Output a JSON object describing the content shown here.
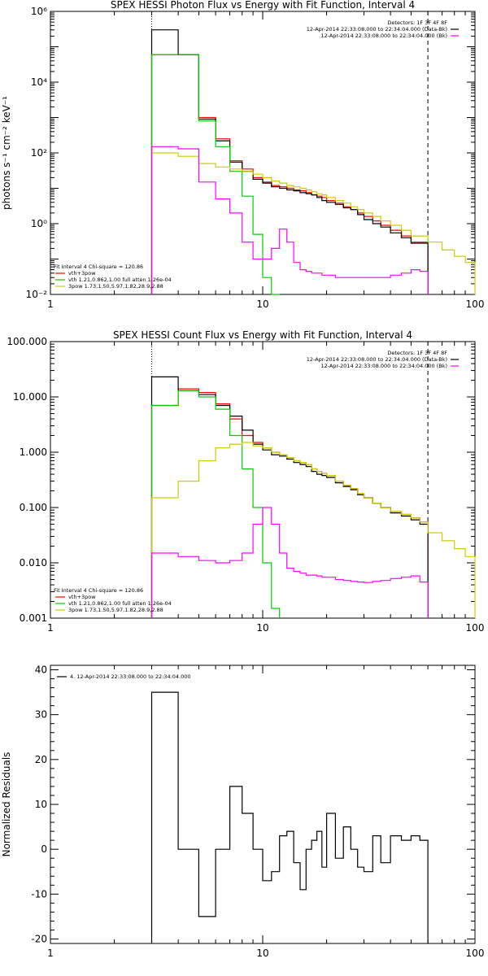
{
  "chart_data": [
    {
      "type": "line",
      "title": "SPEX HESSI Photon Flux vs Energy with Fit Function, Interval 4",
      "ylabel": "photons s⁻¹ cm⁻² keV⁻¹",
      "xlabel": "",
      "xscale": "log",
      "yscale": "log",
      "xlim": [
        1,
        100
      ],
      "ylim": [
        0.01,
        1000000
      ],
      "x_ticks": [
        {
          "v": 1,
          "label": "1"
        },
        {
          "v": 10,
          "label": "10"
        },
        {
          "v": 100,
          "label": "100"
        }
      ],
      "y_ticks": [
        {
          "v": 0.01,
          "label": "10⁻²"
        },
        {
          "v": 1,
          "label": "10⁰"
        },
        {
          "v": 100,
          "label": "10²"
        },
        {
          "v": 10000,
          "label": "10⁴"
        },
        {
          "v": 1000000,
          "label": "10⁶"
        }
      ],
      "vlines": [
        {
          "x": 3,
          "style": "dotted"
        },
        {
          "x": 60,
          "style": "dashed"
        }
      ],
      "legend_top": [
        {
          "text": "Detectors: 1F 3F 4F 8F",
          "color": "#000000"
        },
        {
          "text": "12-Apr-2014 22:33:08.000 to 22:34:04.000 (Data-Bk)",
          "color": "#000000"
        },
        {
          "text": "12-Apr-2014 22:33:08.000 to 22:34:04.000 (Bk)",
          "color": "#ff00ff"
        }
      ],
      "legend_bottom": [
        {
          "text": "Fit Interval 4   Chi-square = 120.86",
          "color": "#000000"
        },
        {
          "text": "vth+3pow",
          "color": "#ff0000"
        },
        {
          "text": "vth 1.21,0.862,1.00  full atten 1.26e-04",
          "color": "#00cc00"
        },
        {
          "text": "3pow 1.73,1.50,5.97,1.82,28.9,2.88",
          "color": "#cccc00"
        }
      ],
      "series": [
        {
          "color": "#ff0000",
          "edges": [
            3,
            4,
            5,
            6,
            7,
            8,
            9,
            10,
            11,
            12,
            13,
            14,
            15,
            16,
            17,
            18,
            19,
            20,
            22,
            24,
            26,
            28,
            30,
            33,
            36,
            40,
            45,
            50,
            60
          ],
          "values": [
            60000,
            60000,
            1000,
            250,
            60,
            35,
            20,
            15,
            12,
            11,
            10,
            9,
            8.5,
            7.5,
            6.5,
            6,
            5.5,
            4.5,
            3.8,
            3,
            2.5,
            2,
            1.6,
            1.2,
            0.9,
            0.65,
            0.45,
            0.3
          ]
        },
        {
          "color": "#000000",
          "edges": [
            3,
            4,
            5,
            6,
            7,
            8,
            9,
            10,
            11,
            12,
            13,
            14,
            15,
            16,
            17,
            18,
            19,
            20,
            22,
            24,
            26,
            28,
            30,
            33,
            36,
            40,
            45,
            50,
            60
          ],
          "values": [
            300000,
            60000,
            900,
            220,
            55,
            30,
            18,
            14,
            11,
            10,
            9,
            8.5,
            7.5,
            7,
            6.5,
            5.5,
            4.5,
            4,
            3.5,
            2.8,
            2.5,
            1.8,
            1.3,
            1,
            0.8,
            0.55,
            0.4,
            0.28
          ]
        },
        {
          "color": "#00cc00",
          "edges": [
            3,
            4,
            5,
            6,
            7,
            8,
            9,
            10,
            11,
            12
          ],
          "values": [
            60000,
            60000,
            800,
            150,
            30,
            6,
            0.5,
            0.03,
            0.01
          ]
        },
        {
          "color": "#cccc00",
          "edges": [
            3,
            4,
            5,
            6,
            7,
            8,
            9,
            10,
            11,
            12,
            13,
            14,
            15,
            16,
            17,
            18,
            19,
            20,
            22,
            24,
            26,
            28,
            30,
            33,
            36,
            40,
            45,
            50,
            60,
            70,
            80,
            90,
            100
          ],
          "values": [
            100,
            80,
            50,
            40,
            35,
            30,
            25,
            20,
            16,
            14,
            12,
            11,
            10,
            9,
            8,
            7,
            6.5,
            5.5,
            4.5,
            3.8,
            3,
            2.5,
            2,
            1.6,
            1.2,
            0.9,
            0.65,
            0.45,
            0.3,
            0.18,
            0.12,
            0.08
          ]
        },
        {
          "color": "#ff00ff",
          "edges": [
            3,
            4,
            5,
            6,
            7,
            8,
            9,
            10,
            11,
            12,
            13,
            14,
            15,
            16,
            17,
            18,
            19,
            20,
            22,
            24,
            26,
            28,
            30,
            33,
            36,
            40,
            45,
            50,
            55,
            60
          ],
          "values": [
            150,
            130,
            15,
            5,
            2,
            0.3,
            0.1,
            0.1,
            0.2,
            0.7,
            0.3,
            0.08,
            0.05,
            0.045,
            0.04,
            0.04,
            0.035,
            0.035,
            0.03,
            0.03,
            0.03,
            0.03,
            0.03,
            0.03,
            0.03,
            0.035,
            0.04,
            0.05,
            0.045
          ]
        }
      ]
    },
    {
      "type": "line",
      "title": "SPEX HESSI Count Flux vs Energy with Fit Function, Interval 4",
      "ylabel": "",
      "xlabel": "",
      "xscale": "log",
      "yscale": "log",
      "xlim": [
        1,
        100
      ],
      "ylim": [
        0.001,
        100
      ],
      "x_ticks": [
        {
          "v": 1,
          "label": "1"
        },
        {
          "v": 10,
          "label": "10"
        },
        {
          "v": 100,
          "label": "100"
        }
      ],
      "y_ticks": [
        {
          "v": 0.001,
          "label": "0.001"
        },
        {
          "v": 0.01,
          "label": "0.010"
        },
        {
          "v": 0.1,
          "label": "0.100"
        },
        {
          "v": 1,
          "label": "1.000"
        },
        {
          "v": 10,
          "label": "10.000"
        },
        {
          "v": 100,
          "label": "100.000"
        }
      ],
      "vlines": [
        {
          "x": 3,
          "style": "dotted"
        },
        {
          "x": 60,
          "style": "dashed"
        }
      ],
      "legend_top": [
        {
          "text": "Detectors: 1F 3F 4F 8F",
          "color": "#000000"
        },
        {
          "text": "12-Apr-2014 22:33:08.000 to 22:34:04.000 (Data-Bk)",
          "color": "#000000"
        },
        {
          "text": "12-Apr-2014 22:33:08.000 to 22:34:04.000 (Bk)",
          "color": "#ff00ff"
        }
      ],
      "legend_bottom": [
        {
          "text": "Fit Interval 4   Chi-square = 120.86",
          "color": "#000000"
        },
        {
          "text": "vth+3pow",
          "color": "#ff0000"
        },
        {
          "text": "vth 1.21,0.862,1.00  full atten 1.26e-04",
          "color": "#00cc00"
        },
        {
          "text": "3pow 1.73,1.50,5.97,1.82,28.9,2.88",
          "color": "#cccc00"
        }
      ],
      "series": [
        {
          "color": "#ff0000",
          "edges": [
            3,
            4,
            5,
            6,
            7,
            8,
            9,
            10,
            11,
            12,
            13,
            14,
            15,
            16,
            17,
            18,
            19,
            20,
            22,
            24,
            26,
            28,
            30,
            33,
            36,
            40,
            45,
            50,
            55,
            60
          ],
          "values": [
            7,
            14,
            12,
            7.5,
            4,
            2,
            1.5,
            1.2,
            1,
            0.9,
            0.8,
            0.7,
            0.65,
            0.6,
            0.5,
            0.45,
            0.42,
            0.38,
            0.3,
            0.25,
            0.22,
            0.18,
            0.15,
            0.12,
            0.1,
            0.085,
            0.075,
            0.065,
            0.055
          ]
        },
        {
          "color": "#000000",
          "edges": [
            3,
            4,
            5,
            6,
            7,
            8,
            9,
            10,
            11,
            12,
            13,
            14,
            15,
            16,
            17,
            18,
            19,
            20,
            22,
            24,
            26,
            28,
            30,
            33,
            36,
            40,
            45,
            50,
            55,
            60
          ],
          "values": [
            23,
            13,
            11,
            7,
            4.5,
            2.5,
            1.4,
            1.1,
            0.9,
            0.85,
            0.75,
            0.65,
            0.6,
            0.55,
            0.45,
            0.4,
            0.38,
            0.35,
            0.28,
            0.24,
            0.21,
            0.17,
            0.15,
            0.12,
            0.1,
            0.08,
            0.07,
            0.06,
            0.05
          ]
        },
        {
          "color": "#00cc00",
          "edges": [
            3,
            4,
            5,
            6,
            7,
            8,
            9,
            10,
            11,
            12
          ],
          "values": [
            7,
            13,
            10,
            6,
            2,
            0.5,
            0.1,
            0.01,
            0.0015
          ]
        },
        {
          "color": "#cccc00",
          "edges": [
            3,
            4,
            5,
            6,
            7,
            8,
            9,
            10,
            11,
            12,
            13,
            14,
            15,
            16,
            17,
            18,
            19,
            20,
            22,
            24,
            26,
            28,
            30,
            33,
            36,
            40,
            45,
            50,
            55,
            60,
            70,
            80,
            90,
            100
          ],
          "values": [
            0.15,
            0.3,
            0.7,
            1.2,
            1.4,
            1.5,
            1.3,
            1.2,
            1,
            0.9,
            0.8,
            0.7,
            0.65,
            0.6,
            0.5,
            0.45,
            0.42,
            0.38,
            0.3,
            0.25,
            0.22,
            0.18,
            0.15,
            0.12,
            0.1,
            0.085,
            0.075,
            0.065,
            0.055,
            0.035,
            0.025,
            0.018,
            0.013
          ]
        },
        {
          "color": "#ff00ff",
          "edges": [
            3,
            4,
            5,
            6,
            7,
            8,
            9,
            10,
            11,
            12,
            13,
            14,
            15,
            16,
            17,
            18,
            19,
            20,
            22,
            24,
            26,
            28,
            30,
            33,
            36,
            40,
            45,
            50,
            55,
            60
          ],
          "values": [
            0.015,
            0.013,
            0.011,
            0.01,
            0.011,
            0.015,
            0.05,
            0.1,
            0.05,
            0.015,
            0.008,
            0.007,
            0.0065,
            0.006,
            0.006,
            0.0058,
            0.0055,
            0.0055,
            0.005,
            0.0048,
            0.0046,
            0.0045,
            0.0044,
            0.0046,
            0.0048,
            0.0052,
            0.0055,
            0.0058,
            0.0045
          ]
        }
      ]
    },
    {
      "type": "line",
      "title": "",
      "ylabel": "Normalized Residuals",
      "xlabel": "",
      "xscale": "log",
      "yscale": "linear",
      "xlim": [
        1,
        100
      ],
      "ylim": [
        -21,
        41
      ],
      "x_ticks": [
        {
          "v": 1,
          "label": "1"
        },
        {
          "v": 10,
          "label": "10"
        },
        {
          "v": 100,
          "label": "100"
        }
      ],
      "y_ticks": [
        {
          "v": -20,
          "label": "-20"
        },
        {
          "v": -10,
          "label": "-10"
        },
        {
          "v": 0,
          "label": "0"
        },
        {
          "v": 10,
          "label": "10"
        },
        {
          "v": 20,
          "label": "20"
        },
        {
          "v": 30,
          "label": "30"
        },
        {
          "v": 40,
          "label": "40"
        }
      ],
      "vlines": [],
      "legend_top_left": [
        {
          "text": "4. 12-Apr-2014 22:33:08.000 to 22:34:04.000",
          "color": "#000000"
        }
      ],
      "series": [
        {
          "color": "#000000",
          "edges": [
            3,
            4,
            5,
            6,
            7,
            8,
            9,
            10,
            11,
            12,
            13,
            14,
            15,
            16,
            17,
            18,
            19,
            20,
            22,
            24,
            26,
            28,
            30,
            33,
            36,
            40,
            45,
            50,
            55,
            60
          ],
          "values": [
            35,
            0,
            -15,
            0,
            14,
            8,
            0,
            -7,
            -5,
            3,
            4,
            -3,
            -9,
            0,
            2,
            4,
            -4,
            8,
            -2,
            5,
            0,
            -4,
            -5,
            3,
            -3,
            3,
            2,
            3,
            2
          ],
          "drop_to_bottom": true
        }
      ]
    }
  ]
}
